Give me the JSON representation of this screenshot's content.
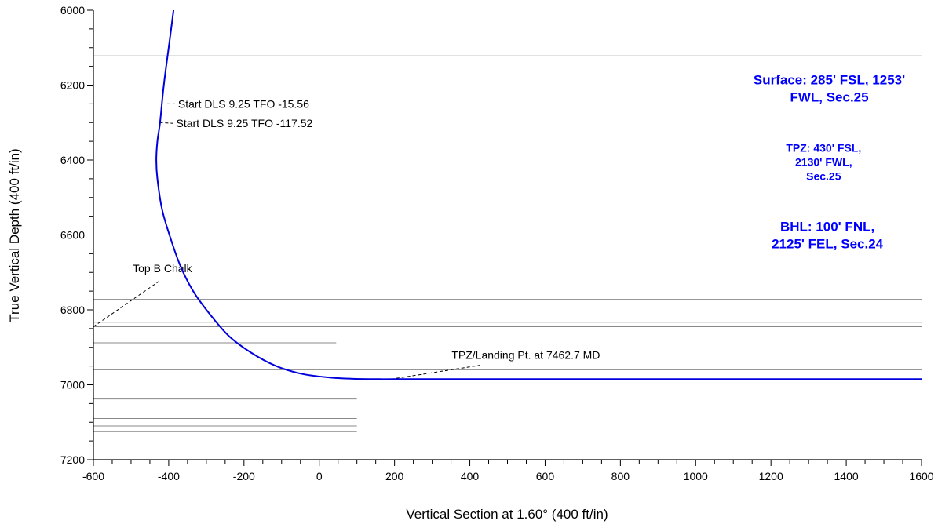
{
  "chart_data": {
    "type": "line",
    "xlabel": "Vertical Section at 1.60° (400 ft/in)",
    "ylabel": "True Vertical Depth (400 ft/in)",
    "xlim": [
      -600,
      1600
    ],
    "ylim": [
      6000,
      7200
    ],
    "y_inverted": true,
    "x_ticks": [
      -600,
      -400,
      -200,
      0,
      200,
      400,
      600,
      800,
      1000,
      1200,
      1400,
      1600
    ],
    "y_ticks": [
      6000,
      6200,
      6400,
      6600,
      6800,
      7000,
      7200
    ],
    "x_tick_labels": [
      "-600",
      "-400",
      "-200",
      "0",
      "200",
      "400",
      "600",
      "800",
      "1000",
      "1200",
      "1400",
      "1600"
    ],
    "y_tick_labels": [
      "6000",
      "6200",
      "6400",
      "6600",
      "6800",
      "7000",
      "7200"
    ],
    "grid": false,
    "colors": {
      "wellpath": "#0000dd",
      "location_text": "#0000ff",
      "formation_line": "#888888"
    },
    "series": [
      {
        "x": [
          -387,
          -400,
          -413,
          -423,
          -430,
          -433,
          -430,
          -418,
          -398,
          -370,
          -335,
          -292,
          -240,
          -180,
          -115,
          -50,
          20,
          90,
          160,
          200,
          400,
          800,
          1200,
          1600
        ],
        "y": [
          6000,
          6100,
          6200,
          6300,
          6350,
          6400,
          6450,
          6530,
          6600,
          6680,
          6750,
          6810,
          6870,
          6915,
          6950,
          6970,
          6980,
          6984,
          6985,
          6985,
          6985,
          6985,
          6985,
          6985
        ]
      }
    ],
    "formation_lines": [
      {
        "y": 6122,
        "x_start": -600,
        "x_end": 1600
      },
      {
        "y": 6772,
        "x_start": -600,
        "x_end": 1600
      },
      {
        "y": 6833,
        "x_start": -600,
        "x_end": 1600
      },
      {
        "y": 6845,
        "x_start": -600,
        "x_end": 1600
      },
      {
        "y": 6888,
        "x_start": -600,
        "x_end": 45
      },
      {
        "y": 6960,
        "x_start": -600,
        "x_end": 1600
      },
      {
        "y": 6998,
        "x_start": -600,
        "x_end": 100
      },
      {
        "y": 7038,
        "x_start": -600,
        "x_end": 100
      },
      {
        "y": 7090,
        "x_start": -600,
        "x_end": 100
      },
      {
        "y": 7110,
        "x_start": -600,
        "x_end": 100
      },
      {
        "y": 7125,
        "x_start": -600,
        "x_end": 100
      }
    ],
    "annotations": [
      {
        "text": "Start DLS 9.25 TFO -15.56",
        "x": -404,
        "y": 6250,
        "label_x": -375,
        "label_y": 6250,
        "dashed": true
      },
      {
        "text": "Start DLS 9.25 TFO -117.52",
        "x": -424,
        "y": 6300,
        "label_x": -380,
        "label_y": 6302,
        "dashed": true
      },
      {
        "text": "Top B Chalk",
        "x": -600,
        "y": 6845,
        "label_x": -412,
        "label_y": 6720,
        "dashed": true
      },
      {
        "text": "TPZ/Landing Pt. at 7462.7 MD",
        "x": 190,
        "y": 6985,
        "label_x": 435,
        "label_y": 6948,
        "dashed": true
      }
    ],
    "location_labels": [
      {
        "lines": [
          "Surface: 285' FSL, 1253'",
          "FWL, Sec.25"
        ],
        "x": 1355,
        "y": 6198,
        "size": "large"
      },
      {
        "lines": [
          "TPZ: 430' FSL,",
          "2130' FWL,",
          "Sec.25"
        ],
        "x": 1340,
        "y": 6378,
        "size": "small"
      },
      {
        "lines": [
          "BHL: 100' FNL,",
          "2125' FEL, Sec.24"
        ],
        "x": 1350,
        "y": 6590,
        "size": "large"
      }
    ]
  }
}
